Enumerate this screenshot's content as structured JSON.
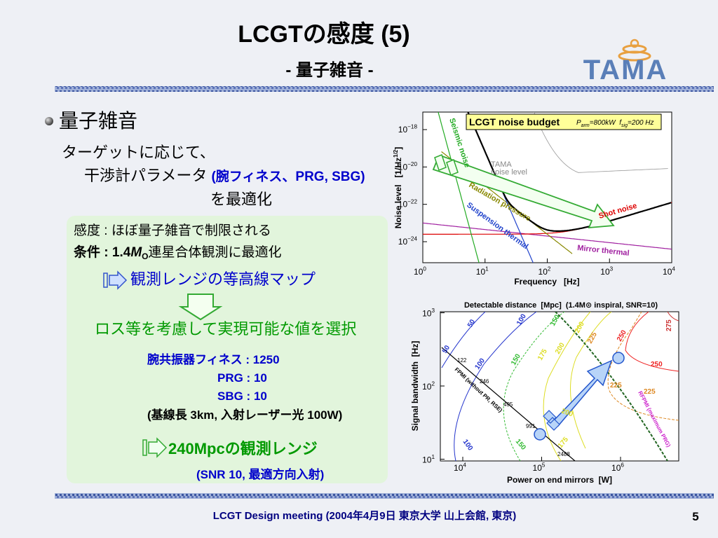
{
  "header": {
    "title": "LCGTの感度 (5)",
    "subtitle": "- 量子雑音 -",
    "logo": "TAMA"
  },
  "body": {
    "bullet": "量子雑音",
    "line1": "ターゲットに応じて、",
    "line2": "干渉計パラメータ ",
    "line2_note": "(腕フィネス、PRG, SBG)",
    "line3": "を最適化",
    "box": {
      "sensitivity": "感度 : ほぼ量子雑音で制限される",
      "condition_prefix": "条件 : 1.4",
      "condition_mass": "M",
      "condition_sub": "O",
      "condition_suffix": "連星合体観測に最適化",
      "map": "観測レンジの等高線マップ",
      "choose": "ロス等を考慮して実現可能な値を選択",
      "params": [
        "腕共振器フィネス : 1250",
        "PRG : 10",
        "SBG : 10"
      ],
      "params_note": "(基線長 3km, 入射レーザー光 100W)",
      "result": "240Mpcの観測レンジ",
      "result_note": "(SNR 10, 最適方向入射)"
    }
  },
  "plot1": {
    "title": "LCGT noise budget",
    "params": [
      "P",
      "arm",
      "=800kW  ",
      "f",
      "sig",
      "=200 Hz"
    ],
    "ylabel": [
      "Noise level   [1/Hz",
      "1/2",
      "]"
    ],
    "xlabel": "Frequency   [Hz]",
    "xticks": [
      {
        "base": "10",
        "exp": "0"
      },
      {
        "base": "10",
        "exp": "1"
      },
      {
        "base": "10",
        "exp": "2"
      },
      {
        "base": "10",
        "exp": "3"
      },
      {
        "base": "10",
        "exp": "4"
      }
    ],
    "yticks": [
      {
        "base": "10",
        "exp": "−18"
      },
      {
        "base": "10",
        "exp": "−20"
      },
      {
        "base": "10",
        "exp": "−22"
      },
      {
        "base": "10",
        "exp": "−24"
      }
    ],
    "labels": [
      "Seismic noise",
      "TAMA",
      "noise level",
      "Radiation pressure",
      "Suspension thermal",
      "Shot noise",
      "Mirror thermal"
    ]
  },
  "plot2": {
    "title": "Detectable distance  [Mpc]  (1.4M⊙ inspiral, SNR=10)",
    "ylabel": "Signal bandwidth  [Hz]",
    "xlabel": "Power on end mirrors  [W]",
    "xticks": [
      {
        "base": "10",
        "exp": "4"
      },
      {
        "base": "10",
        "exp": "5"
      },
      {
        "base": "10",
        "exp": "6"
      }
    ],
    "yticks": [
      {
        "base": "10",
        "exp": "3"
      },
      {
        "base": "10",
        "exp": "2"
      },
      {
        "base": "10",
        "exp": "1"
      }
    ],
    "contour_labels": [
      "50",
      "100",
      "150",
      "50",
      "100",
      "150",
      "175",
      "200",
      "200",
      "225",
      "250",
      "275",
      "250",
      "225",
      "225",
      "200",
      "175",
      "150",
      "100"
    ],
    "fpmi_label": "FPMI (without PR, RSE)",
    "rfpmi_label": "RFPMI (maximum PRG)",
    "points": [
      "122",
      "246",
      "495",
      "991",
      "2488"
    ]
  },
  "footer": {
    "text": "LCGT Design meeting (2004年4月9日 東京大学 山上会館, 東京)",
    "page": "5"
  }
}
